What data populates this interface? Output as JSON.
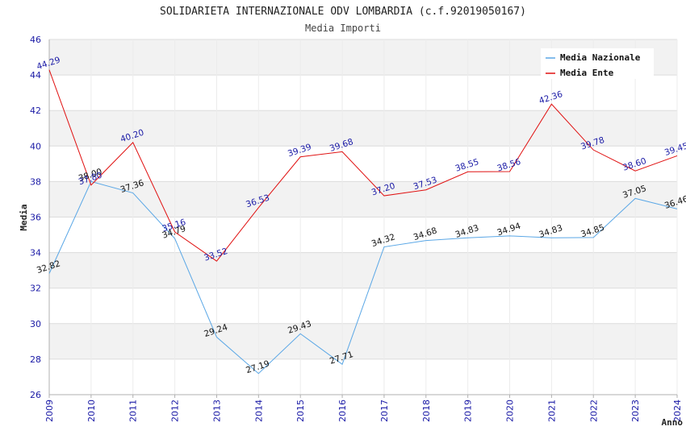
{
  "chart_data": {
    "type": "line",
    "title": "SOLIDARIETA INTERNAZIONALE ODV LOMBARDIA (c.f.92019050167)",
    "subtitle": "Media Importi",
    "xlabel": "Anno",
    "ylabel": "Media",
    "ylim": [
      26,
      46
    ],
    "yticks": [
      26,
      28,
      30,
      32,
      34,
      36,
      38,
      40,
      42,
      44,
      46
    ],
    "grid": true,
    "legend_position": "top-right",
    "x": [
      "2009",
      "2010",
      "2011",
      "2012",
      "2013",
      "2014",
      "2015",
      "2016",
      "2017",
      "2018",
      "2019",
      "2020",
      "2021",
      "2022",
      "2023",
      "2024"
    ],
    "series": [
      {
        "name": "Media Nazionale",
        "color": "#5aa7e6",
        "label_color": "#111111",
        "values": [
          32.82,
          38.0,
          37.36,
          34.79,
          29.24,
          27.19,
          29.43,
          27.71,
          34.32,
          34.68,
          34.83,
          34.94,
          34.83,
          34.85,
          37.05,
          36.46
        ],
        "labels": [
          "32.82",
          "38.00",
          "37.36",
          "34.79",
          "29.24",
          "27.19",
          "29.43",
          "27.71",
          "34.32",
          "34.68",
          "34.83",
          "34.94",
          "34.83",
          "34.85",
          "37.05",
          "36.46"
        ]
      },
      {
        "name": "Media Ente",
        "color": "#e01010",
        "label_color": "#1a1aa6",
        "values": [
          44.29,
          37.8,
          40.2,
          35.16,
          33.52,
          36.53,
          39.39,
          39.68,
          37.2,
          37.53,
          38.55,
          38.56,
          42.36,
          39.78,
          38.6,
          39.45
        ],
        "labels": [
          "44.29",
          "37.80",
          "40.20",
          "35.16",
          "33.52",
          "36.53",
          "39.39",
          "39.68",
          "37.20",
          "37.53",
          "38.55",
          "38.56",
          "42.36",
          "39.78",
          "38.60",
          "39.45"
        ]
      }
    ]
  }
}
